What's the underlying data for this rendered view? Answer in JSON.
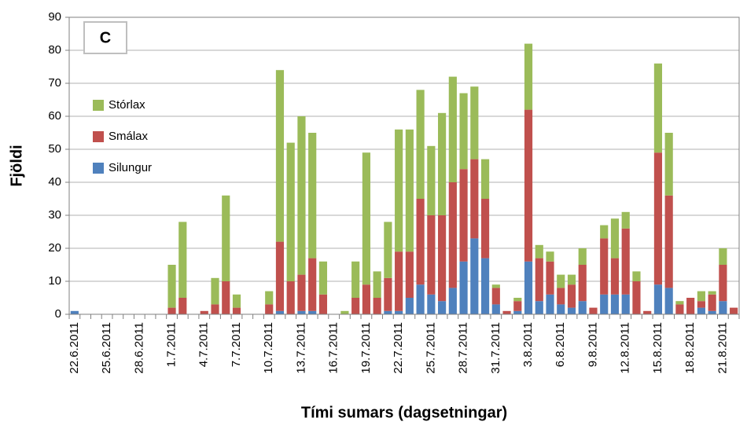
{
  "chart_data": {
    "type": "bar",
    "stacked": true,
    "annotation": "C",
    "y_label": "Fjöldi",
    "x_label": "Tími sumars (dagsetningar)",
    "categories": [
      "22.6.2011",
      null,
      null,
      "25.6.2011",
      null,
      null,
      "28.6.2011",
      null,
      null,
      "1.7.2011",
      null,
      null,
      "4.7.2011",
      null,
      null,
      "7.7.2011",
      null,
      null,
      "10.7.2011",
      null,
      null,
      "13.7.2011",
      null,
      null,
      "16.7.2011",
      null,
      null,
      "19.7.2011",
      null,
      null,
      "22.7.2011",
      null,
      null,
      "25.7.2011",
      null,
      null,
      "28.7.2011",
      null,
      null,
      "31.7.2011",
      null,
      null,
      "3.8.2011",
      null,
      null,
      "6.8.2011",
      null,
      null,
      "9.8.2011",
      null,
      null,
      "12.8.2011",
      null,
      null,
      "15.8.2011",
      null,
      null,
      "18.8.2011",
      null,
      null,
      "21.8.2011",
      null
    ],
    "series": [
      {
        "name": "Silungur",
        "color": "#4f81bd",
        "values": [
          1,
          0,
          0,
          0,
          0,
          0,
          0,
          0,
          0,
          0,
          0,
          0,
          0,
          0,
          0,
          0,
          0,
          0,
          0,
          1,
          0,
          1,
          1,
          0,
          0,
          0,
          0,
          0,
          0,
          1,
          1,
          5,
          9,
          6,
          4,
          8,
          16,
          23,
          17,
          3,
          0,
          1,
          16,
          4,
          6,
          3,
          2,
          4,
          0,
          6,
          6,
          6,
          0,
          0,
          9,
          8,
          0,
          0,
          2,
          1,
          4,
          0
        ]
      },
      {
        "name": "Smálax",
        "color": "#c0504d",
        "values": [
          0,
          0,
          0,
          0,
          0,
          0,
          0,
          0,
          0,
          2,
          5,
          0,
          1,
          3,
          10,
          2,
          0,
          0,
          3,
          21,
          10,
          11,
          16,
          6,
          0,
          0,
          5,
          9,
          5,
          10,
          18,
          14,
          26,
          24,
          26,
          32,
          28,
          24,
          18,
          5,
          1,
          3,
          46,
          13,
          10,
          5,
          7,
          11,
          2,
          17,
          11,
          20,
          10,
          1,
          40,
          28,
          3,
          5,
          2,
          5,
          11,
          2
        ]
      },
      {
        "name": "Stórlax",
        "color": "#9bbb59",
        "values": [
          0,
          0,
          0,
          0,
          0,
          0,
          0,
          0,
          0,
          13,
          23,
          0,
          0,
          8,
          26,
          4,
          0,
          0,
          4,
          52,
          42,
          48,
          38,
          10,
          0,
          1,
          11,
          40,
          8,
          17,
          37,
          37,
          33,
          21,
          31,
          32,
          23,
          22,
          12,
          1,
          0,
          1,
          20,
          4,
          3,
          4,
          3,
          5,
          0,
          4,
          12,
          5,
          3,
          0,
          27,
          19,
          1,
          0,
          3,
          1,
          5,
          0
        ]
      }
    ],
    "ylim": [
      0,
      90
    ],
    "yticks": [
      0,
      10,
      20,
      30,
      40,
      50,
      60,
      70,
      80,
      90
    ],
    "grid": true,
    "legend": "upper-left"
  }
}
